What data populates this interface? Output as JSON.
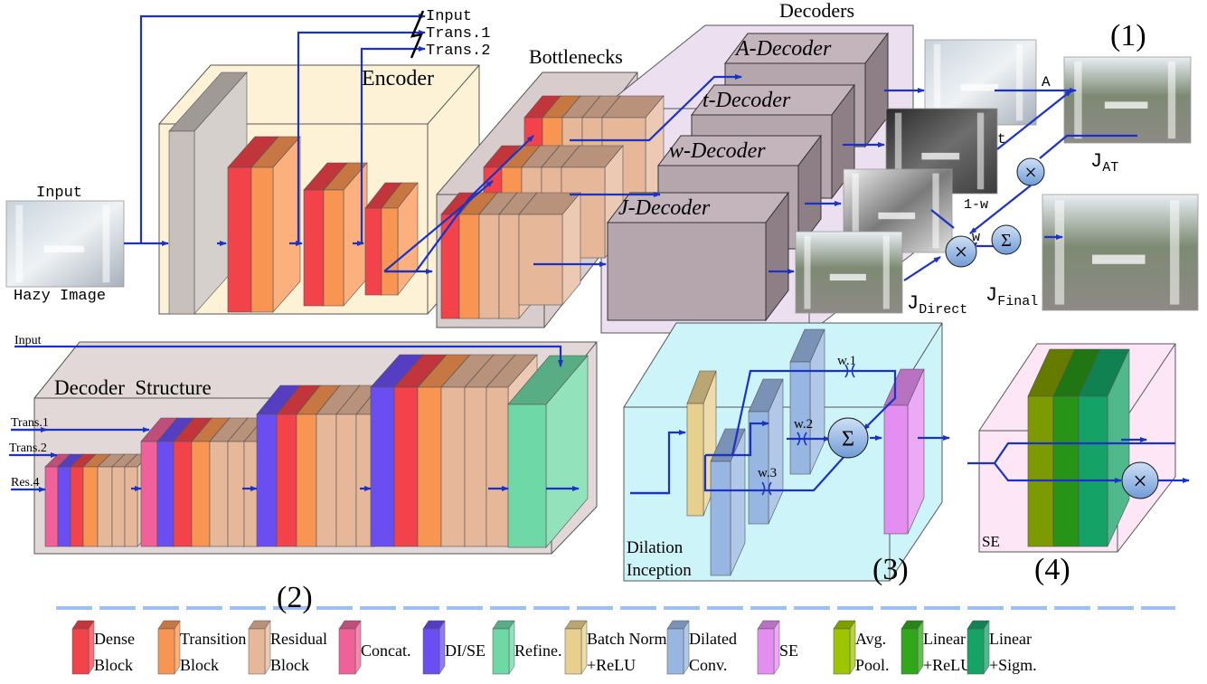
{
  "section1": {
    "number": "(1)",
    "input_caption": "Input",
    "hazy_caption": "Hazy Image",
    "encoder_label": "Encoder",
    "bottlenecks_label": "Bottlenecks",
    "decoders_label": "Decoders",
    "switch_labels": [
      "Input",
      "Trans.1",
      "Trans.2"
    ],
    "decoder_labels": [
      "A-Decoder",
      "t-Decoder",
      "w-Decoder",
      "J-Decoder"
    ],
    "output_labels": {
      "A": "A",
      "t": "t",
      "one_minus_w": "1-w",
      "w": "w",
      "J": "J",
      "J_AT_sub": "AT",
      "J_Direct_sub": "Direct",
      "J_Final_sub": "Final"
    },
    "ops": {
      "multiply": "×",
      "sum": "Σ"
    }
  },
  "section2": {
    "number": "(2)",
    "title": "Decoder  Structure",
    "inputs": [
      "Input",
      "Trans.1",
      "Trans.2",
      "Res.4"
    ]
  },
  "section3": {
    "number": "(3)",
    "title_line1": "Dilation",
    "title_line2": "Inception",
    "weights": [
      "w.1",
      "w.2",
      "w.3"
    ],
    "op": "Σ"
  },
  "section4": {
    "number": "(4)",
    "title": "SE",
    "op": "×"
  },
  "legend": [
    {
      "line1": "Dense",
      "line2": "Block",
      "color": "#f2424a"
    },
    {
      "line1": "Transition",
      "line2": "Block",
      "color": "#f99553"
    },
    {
      "line1": "Residual",
      "line2": "Block",
      "color": "#e6b798"
    },
    {
      "line1": "Concat.",
      "line2": "",
      "color": "#f0619a"
    },
    {
      "line1": "DI/SE",
      "line2": "",
      "color": "#6b4ef2"
    },
    {
      "line1": "Refine.",
      "line2": "",
      "color": "#6ed8a6"
    },
    {
      "line1": "Batch  Norm.",
      "line2": "+ReLU",
      "color": "#e7d08e"
    },
    {
      "line1": "Dilated",
      "line2": "Conv.",
      "color": "#97b6e2"
    },
    {
      "line1": "SE",
      "line2": "",
      "color": "#e58ef2"
    },
    {
      "line1": "Avg.",
      "line2": "Pool.",
      "color": "#9ec600"
    },
    {
      "line1": "Linear",
      "line2": "+ReLU",
      "color": "#31a81b"
    },
    {
      "line1": "Linear",
      "line2": "+Sigm.",
      "color": "#16a366"
    }
  ],
  "colors": {
    "dense": "#f2424a",
    "transition": "#f99553",
    "residual": "#e6b798",
    "concat": "#f0619a",
    "dise": "#6b4ef2",
    "refine": "#6ed8a6",
    "bn": "#e7d08e",
    "dilated": "#97b6e2",
    "se": "#e58ef2",
    "arrow": "#1a32c8"
  }
}
